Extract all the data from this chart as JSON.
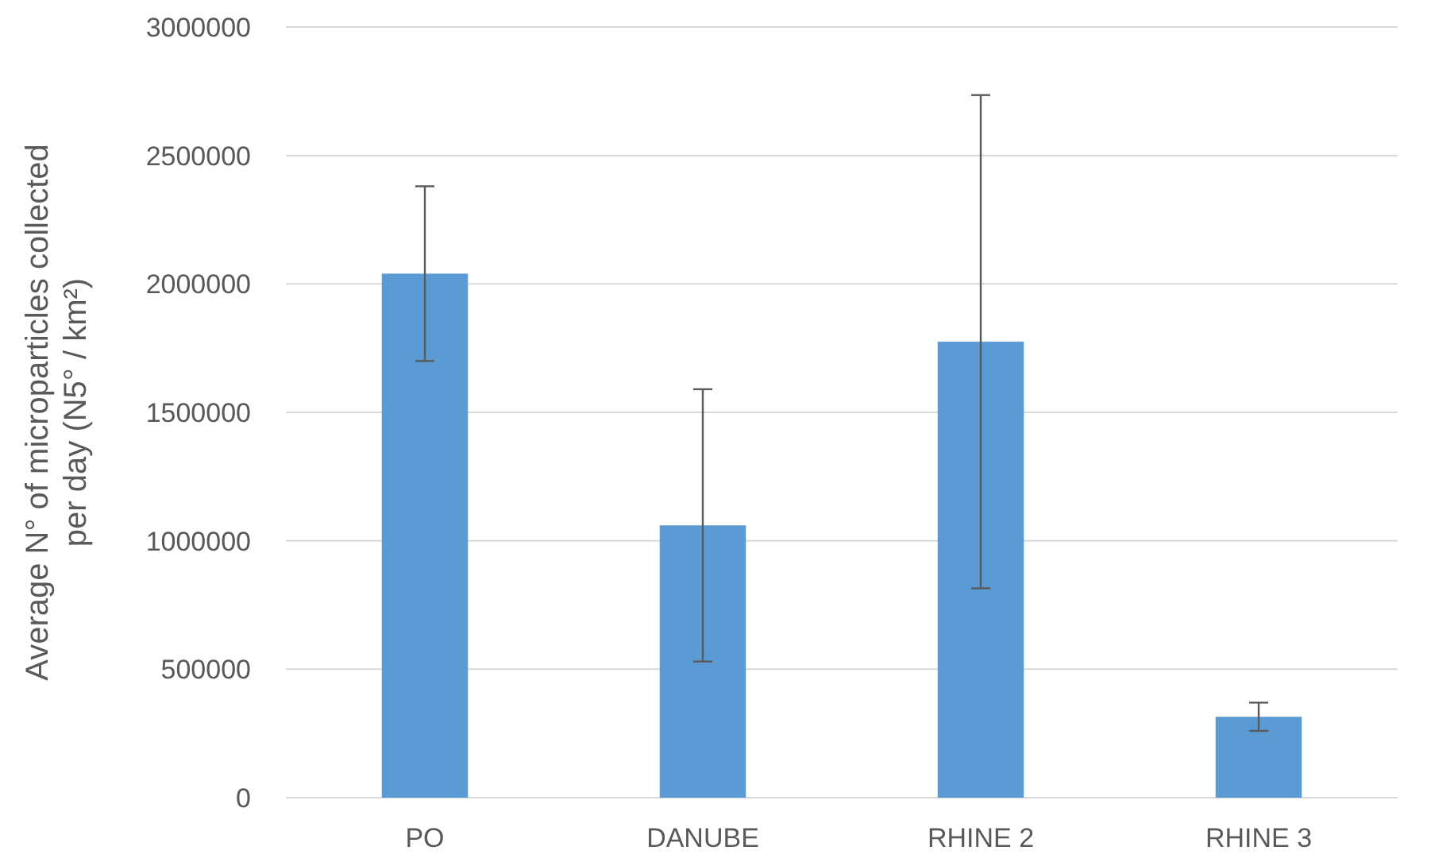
{
  "chart_data": {
    "type": "bar",
    "ylabel": "Average N° of microparticles collected\nper day (N5° / km²)",
    "categories": [
      "PO",
      "DANUBE",
      "RHINE 2",
      "RHINE 3"
    ],
    "values": [
      2040000,
      1060000,
      1775000,
      315000
    ],
    "errors": [
      340000,
      530000,
      960000,
      55000
    ],
    "color": "#5b9bd5",
    "ylim": [
      0,
      3000000
    ],
    "yticks": [
      0,
      500000,
      1000000,
      1500000,
      2000000,
      2500000,
      3000000
    ],
    "grid": "y"
  }
}
